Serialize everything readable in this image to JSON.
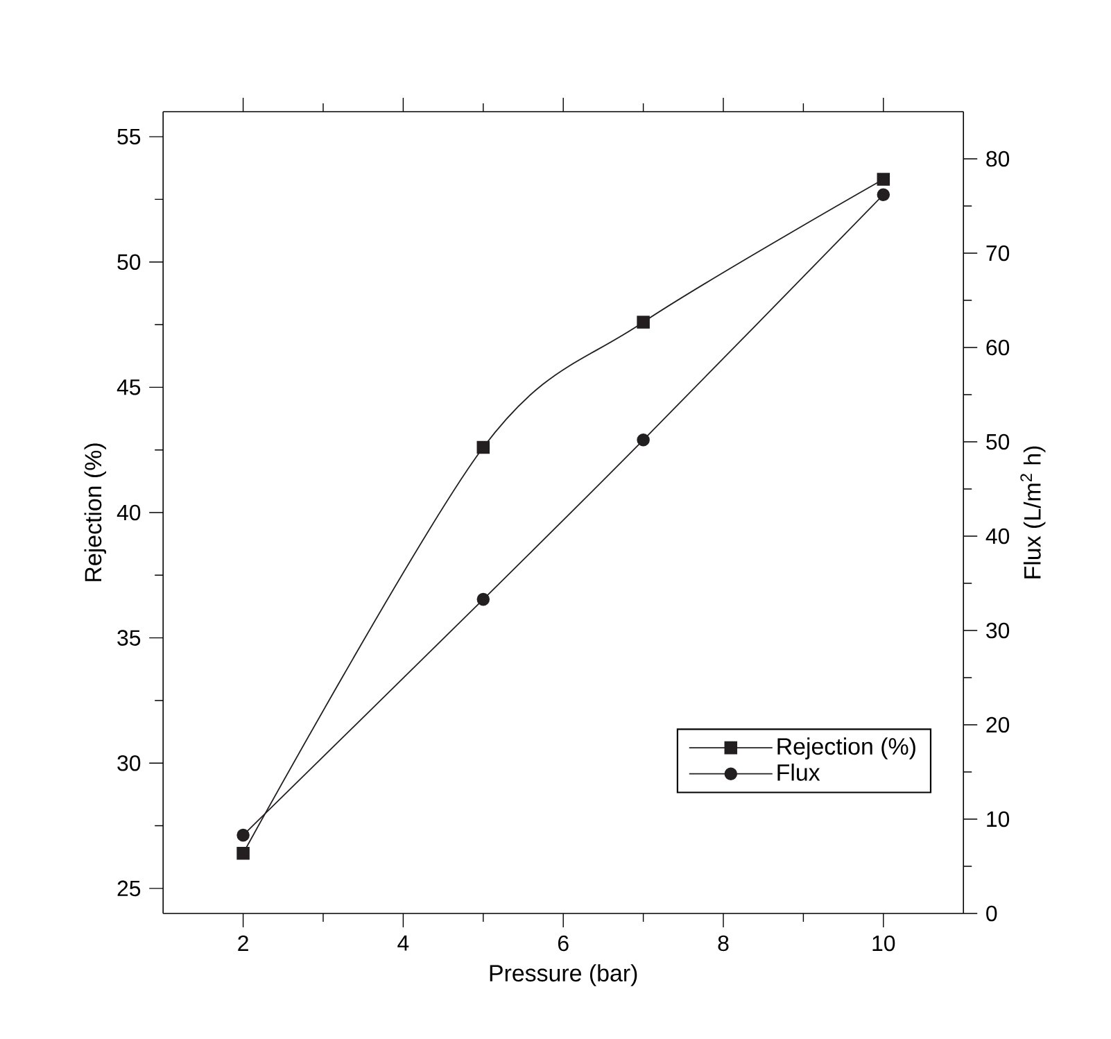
{
  "chart_data": {
    "type": "line",
    "xlabel": "Pressure (bar)",
    "ylabel": "Rejection (%)",
    "y2label": "Flux (L/m$^{2}$ h)",
    "x": [
      2,
      5,
      7,
      10
    ],
    "series": [
      {
        "name": "Rejection (%)",
        "color": "#231f20",
        "marker": "square",
        "values": [
          26.4,
          42.6,
          47.6,
          53.3
        ]
      },
      {
        "name": "Flux",
        "color": "#231f20",
        "marker": "circle",
        "axis": "y2",
        "values": [
          8.3,
          33.3,
          50.2,
          76.2
        ]
      }
    ],
    "xlim": [
      1,
      11
    ],
    "xticks": [
      2,
      4,
      6,
      8,
      10
    ],
    "ylim": [
      24,
      56
    ],
    "yticks": [
      25,
      30,
      35,
      40,
      45,
      50,
      55
    ],
    "y2lim": [
      0,
      85
    ],
    "y2ticks": [
      0,
      10,
      20,
      30,
      40,
      50,
      60,
      70,
      80
    ],
    "grid": false,
    "legend": "bottom right",
    "line_style": "solid"
  }
}
